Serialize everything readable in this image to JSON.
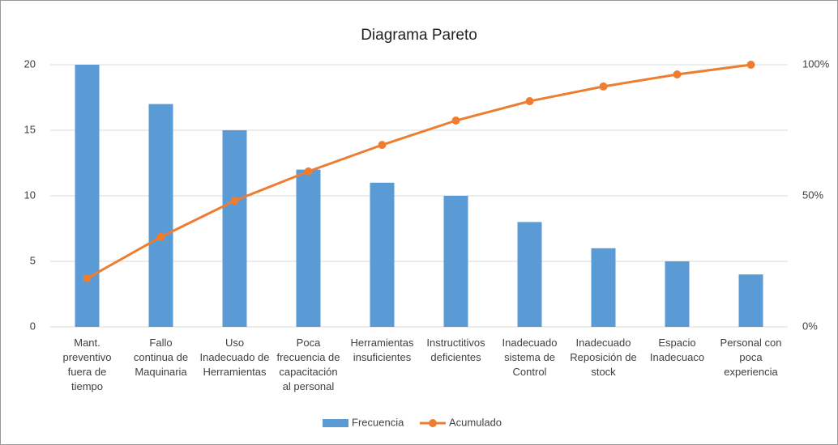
{
  "chart_data": {
    "type": "pareto",
    "title": "Diagrama Pareto",
    "categories": [
      "Mant. preventivo fuera de tiempo",
      "Fallo continua de Maquinaria",
      "Uso Inadecuado de Herramientas",
      "Poca frecuencia de capacitación al personal",
      "Herramientas insuficientes",
      "Instructitivos deficientes",
      "Inadecuado sistema de Control",
      "Inadecuado Reposición de stock",
      "Espacio Inadecuaco",
      "Personal con poca experiencia"
    ],
    "series": [
      {
        "name": "Frecuencia",
        "color": "#5b9bd5",
        "kind": "bar",
        "values": [
          20,
          17,
          15,
          12,
          11,
          10,
          8,
          6,
          5,
          4
        ]
      },
      {
        "name": "Acumulado",
        "color": "#ed7d31",
        "kind": "line",
        "axis": "y2",
        "values": [
          18.5,
          34.3,
          48.1,
          59.3,
          69.4,
          78.7,
          86.1,
          91.7,
          96.3,
          100
        ]
      }
    ],
    "ylim": [
      0,
      20
    ],
    "yticks": [
      0,
      5,
      10,
      15,
      20
    ],
    "y2lim": [
      0,
      100
    ],
    "y2ticks": [
      {
        "value": 0,
        "label": "0%"
      },
      {
        "value": 50,
        "label": "50%"
      },
      {
        "value": 100,
        "label": "100%"
      }
    ],
    "grid": true,
    "legend": "bottom"
  }
}
